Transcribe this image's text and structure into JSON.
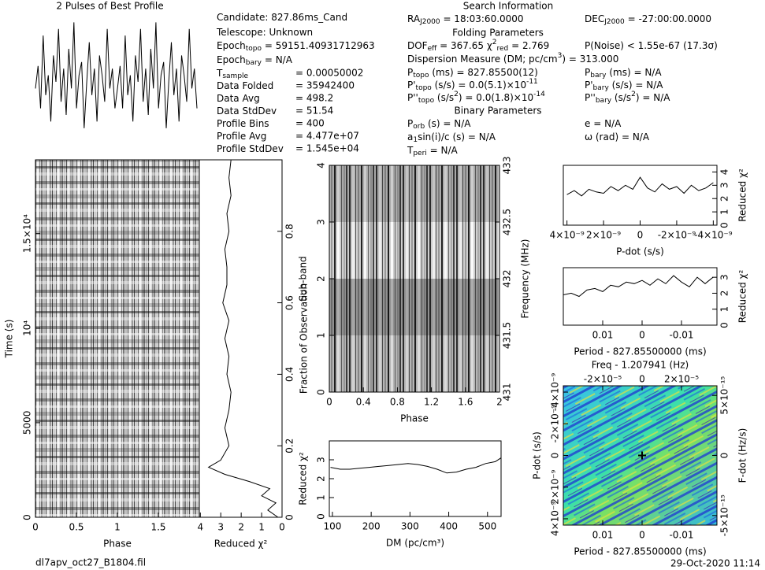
{
  "info": {
    "left": [
      {
        "label": [
          {
            "text": "Candidate:  827.86ms_Cand"
          }
        ]
      },
      {
        "label": [
          {
            "text": "Telescope:  Unknown"
          }
        ]
      },
      {
        "label": [
          {
            "text": "Epoch"
          },
          {
            "sub": "topo"
          },
          {
            "text": " = 59151.40931712963"
          }
        ]
      },
      {
        "label": [
          {
            "text": "Epoch"
          },
          {
            "sub": "bary"
          },
          {
            "text": " = N/A"
          }
        ]
      },
      {
        "label": [
          {
            "text": "T"
          },
          {
            "sub": "sample"
          }
        ],
        "value": "=  0.00050002"
      },
      {
        "label": [
          {
            "text": "Data Folded"
          }
        ],
        "value": "=  35942400"
      },
      {
        "label": [
          {
            "text": "Data Avg"
          }
        ],
        "value": "=  498.2"
      },
      {
        "label": [
          {
            "text": "Data StdDev"
          }
        ],
        "value": "=  51.54"
      },
      {
        "label": [
          {
            "text": "Profile Bins"
          }
        ],
        "value": "=  400"
      },
      {
        "label": [
          {
            "text": "Profile Avg"
          }
        ],
        "value": "=  4.477e+07"
      },
      {
        "label": [
          {
            "text": "Profile StdDev"
          }
        ],
        "value": "=  1.545e+04"
      }
    ],
    "search": {
      "title": "Search Information",
      "rows": [
        {
          "left": [
            {
              "text": "RA"
            },
            {
              "sub": "J2000"
            },
            {
              "text": " = 18:03:60.0000"
            }
          ],
          "right": [
            {
              "text": "DEC"
            },
            {
              "sub": "J2000"
            },
            {
              "text": " = -27:00:00.0000"
            }
          ]
        },
        {
          "heading": "Folding Parameters"
        },
        {
          "left": [
            {
              "text": "DOF"
            },
            {
              "sub": "eff"
            },
            {
              "text": " = 367.65  χ"
            },
            {
              "sup": "2"
            },
            {
              "sub": "red"
            },
            {
              "text": " = 2.769"
            }
          ],
          "right": [
            {
              "text": "P(Noise) < 1.55e-67   (17.3σ)"
            }
          ]
        },
        {
          "left": [
            {
              "text": "Dispersion Measure (DM; pc/cm"
            },
            {
              "sup": "3"
            },
            {
              "text": ") = 313.000"
            }
          ]
        },
        {
          "left": [
            {
              "text": "P"
            },
            {
              "sub": "topo"
            },
            {
              "text": " (ms) = 827.85500(12)"
            }
          ],
          "right": [
            {
              "text": "P"
            },
            {
              "sub": "bary"
            },
            {
              "text": " (ms) = N/A"
            }
          ]
        },
        {
          "left": [
            {
              "text": "P'"
            },
            {
              "sub": "topo"
            },
            {
              "text": " (s/s) = 0.0(5.1)×10"
            },
            {
              "sup": "-11"
            }
          ],
          "right": [
            {
              "text": "P'"
            },
            {
              "sub": "bary"
            },
            {
              "text": " (s/s) = N/A"
            }
          ]
        },
        {
          "left": [
            {
              "text": "P''"
            },
            {
              "sub": "topo"
            },
            {
              "text": " (s/s"
            },
            {
              "sup": "2"
            },
            {
              "text": ") = 0.0(1.8)×10"
            },
            {
              "sup": "-14"
            }
          ],
          "right": [
            {
              "text": "P''"
            },
            {
              "sub": "bary"
            },
            {
              "text": " (s/s"
            },
            {
              "sup": "2"
            },
            {
              "text": ") = N/A"
            }
          ]
        },
        {
          "heading": "Binary Parameters"
        },
        {
          "left": [
            {
              "text": "P"
            },
            {
              "sub": "orb"
            },
            {
              "text": " (s) = N/A"
            }
          ],
          "right": [
            {
              "text": "e = N/A"
            }
          ]
        },
        {
          "left": [
            {
              "text": "a"
            },
            {
              "sub": "1"
            },
            {
              "text": "sin(i)/c (s) = N/A"
            }
          ],
          "right": [
            {
              "text": "ω (rad) = N/A"
            }
          ]
        },
        {
          "left": [
            {
              "text": "T"
            },
            {
              "sub": "peri"
            },
            {
              "text": " = N/A"
            }
          ]
        }
      ]
    }
  },
  "footer": {
    "file": "dl7apv_oct27_B1804.fil",
    "date": "29-Oct-2020 11:14"
  },
  "chart_data": [
    {
      "type": "line",
      "title": "2 Pulses of Best Profile",
      "values": [
        0.45,
        0.62,
        0.3,
        0.85,
        0.4,
        0.55,
        0.2,
        0.7,
        0.5,
        0.9,
        0.35,
        0.6,
        0.25,
        0.75,
        0.45,
        0.95,
        0.3,
        0.55,
        0.65,
        0.15,
        0.5,
        0.8,
        0.4,
        0.6,
        0.2,
        0.7,
        0.55,
        0.35,
        0.9,
        0.45,
        0.6,
        0.3,
        0.45,
        0.62,
        0.3,
        0.85,
        0.4,
        0.55,
        0.2,
        0.7,
        0.5,
        0.9,
        0.35,
        0.6,
        0.25,
        0.75,
        0.45,
        0.95,
        0.3,
        0.55,
        0.65,
        0.15,
        0.5,
        0.8,
        0.4,
        0.6,
        0.2,
        0.7,
        0.55,
        0.35,
        0.9,
        0.45,
        0.6,
        0.3
      ]
    },
    {
      "type": "heatmap",
      "xlabel": "Phase",
      "ylabel": "Time (s)",
      "xlim": [
        0,
        2
      ],
      "xticks": [
        0,
        0.5,
        1,
        1.5
      ],
      "ylim": [
        0,
        18900
      ],
      "yticks": [
        0,
        5000,
        {
          "value": 10000,
          "label": "10⁴"
        },
        {
          "value": 15000,
          "label": "1.5×10⁴"
        }
      ]
    },
    {
      "type": "line",
      "xlabel": "Reduced χ²",
      "y2label": "Fraction of Observation",
      "xlim": [
        4.05,
        0
      ],
      "xticks": [
        4,
        3,
        2,
        1,
        0
      ],
      "y2lim": [
        0,
        1
      ],
      "y2ticks": [
        0,
        0.2,
        0.4,
        0.6,
        0.8
      ],
      "fraction": [
        0,
        0.02,
        0.04,
        0.06,
        0.08,
        0.1,
        0.12,
        0.14,
        0.16,
        0.2,
        0.25,
        0.3,
        0.35,
        0.4,
        0.45,
        0.5,
        0.55,
        0.6,
        0.65,
        0.7,
        0.75,
        0.8,
        0.85,
        0.9,
        0.95,
        1
      ],
      "values": [
        0.2,
        0.7,
        0.3,
        1.0,
        0.6,
        1.6,
        2.8,
        3.6,
        3.0,
        2.6,
        2.8,
        2.6,
        2.5,
        2.7,
        2.6,
        2.8,
        2.6,
        2.9,
        2.7,
        2.7,
        2.8,
        2.6,
        2.7,
        2.5,
        2.6,
        2.5
      ]
    },
    {
      "type": "heatmap",
      "xlabel": "Phase",
      "ylabel": "Sub-band",
      "y2label": "Frequency (MHz)",
      "xlim": [
        0,
        2
      ],
      "xticks": [
        0,
        0.4,
        0.8,
        1.2,
        1.6,
        2
      ],
      "ylim": [
        0,
        4
      ],
      "yticks": [
        0,
        1,
        2,
        3,
        4
      ],
      "y2lim": [
        431,
        433
      ],
      "y2ticks": [
        431,
        431.5,
        432,
        432.5,
        433
      ]
    },
    {
      "type": "line",
      "xlabel": "DM (pc/cm³)",
      "ylabel": "Reduced χ²",
      "xlim": [
        92,
        535
      ],
      "xticks": [
        100,
        200,
        300,
        400,
        500
      ],
      "ylim": [
        0,
        4
      ],
      "yticks": [
        0,
        1,
        2,
        3
      ],
      "x": [
        95,
        120,
        145,
        170,
        195,
        220,
        245,
        270,
        295,
        320,
        345,
        370,
        395,
        420,
        445,
        470,
        495,
        520,
        535
      ],
      "values": [
        2.6,
        2.5,
        2.5,
        2.55,
        2.6,
        2.65,
        2.7,
        2.75,
        2.8,
        2.75,
        2.65,
        2.5,
        2.3,
        2.35,
        2.5,
        2.6,
        2.8,
        2.9,
        3.1
      ]
    },
    {
      "type": "line",
      "xlabel": "P-dot (s/s)",
      "y2label": "Reduced χ²",
      "xlim": [
        4.2e-09,
        -4.2e-09
      ],
      "xticks": [
        {
          "value": 4e-09,
          "label": "4×10⁻⁹"
        },
        {
          "value": 2e-09,
          "label": "2×10⁻⁹"
        },
        0,
        {
          "value": -2e-09,
          "label": "-2×10⁻⁹"
        },
        {
          "value": -4e-09,
          "label": "-4×10⁻⁹"
        }
      ],
      "y2lim": [
        0,
        4.5
      ],
      "y2ticks": [
        0,
        1,
        2,
        3,
        4
      ],
      "x": [
        4e-09,
        3.6e-09,
        3.2e-09,
        2.8e-09,
        2.4e-09,
        2e-09,
        1.6e-09,
        1.2e-09,
        8e-10,
        4e-10,
        0,
        -4e-10,
        -8e-10,
        -1.2e-09,
        -1.6e-09,
        -2e-09,
        -2.4e-09,
        -2.8e-09,
        -3.2e-09,
        -3.6e-09,
        -4e-09
      ],
      "values": [
        2.3,
        2.6,
        2.2,
        2.7,
        2.5,
        2.4,
        2.9,
        2.6,
        3.0,
        2.7,
        3.6,
        2.8,
        2.5,
        3.1,
        2.7,
        2.9,
        2.4,
        3.0,
        2.6,
        2.8,
        3.2
      ]
    },
    {
      "type": "line",
      "xlabel": "Period - 827.85500000 (ms)",
      "y2label": "Reduced χ²",
      "xlim": [
        0.02,
        -0.019
      ],
      "xticks": [
        0.01,
        0,
        -0.01
      ],
      "y2lim": [
        0,
        3.6
      ],
      "y2ticks": [
        0,
        1,
        2,
        3
      ],
      "x": [
        0.02,
        0.018,
        0.016,
        0.014,
        0.012,
        0.01,
        0.008,
        0.006,
        0.004,
        0.002,
        0,
        -0.002,
        -0.004,
        -0.006,
        -0.008,
        -0.01,
        -0.012,
        -0.014,
        -0.016,
        -0.018
      ],
      "values": [
        1.9,
        2.0,
        1.8,
        2.2,
        2.3,
        2.1,
        2.5,
        2.4,
        2.7,
        2.6,
        2.8,
        2.5,
        2.9,
        2.6,
        3.1,
        2.7,
        2.4,
        3.0,
        2.6,
        3.0
      ]
    },
    {
      "type": "heatmap",
      "xlabel": "Period - 827.85500000 (ms)",
      "ylabel": "P-dot (s/s)",
      "x2label": "Freq - 1.207941 (Hz)",
      "y2label": "F-dot (Hz/s)",
      "xlim": [
        0.02,
        -0.019
      ],
      "xticks": [
        0.01,
        0,
        -0.01
      ],
      "x2lim": [
        -4e-05,
        3.8e-05
      ],
      "x2ticks": [
        {
          "value": -2e-05,
          "label": "-2×10⁻⁵"
        },
        0,
        {
          "value": 2e-05,
          "label": "2×10⁻⁵"
        }
      ],
      "ylim": [
        4.4e-09,
        -4.4e-09
      ],
      "yticks": [
        {
          "value": 4e-09,
          "label": "4×10⁻⁹"
        },
        {
          "value": 2e-09,
          "label": "2×10⁻⁹"
        },
        0,
        {
          "value": -2e-09,
          "label": "-2×10⁻⁹"
        },
        {
          "value": -4e-09,
          "label": "-4×10⁻⁹"
        }
      ],
      "y2lim": [
        -5.8e-15,
        5.8e-15
      ],
      "y2ticks": [
        {
          "value": -5e-15,
          "label": "-5×10⁻¹⁵"
        },
        0,
        {
          "value": 5e-15,
          "label": "5×10⁻¹⁵"
        }
      ],
      "best": {
        "x": 0,
        "y": 0
      }
    }
  ]
}
